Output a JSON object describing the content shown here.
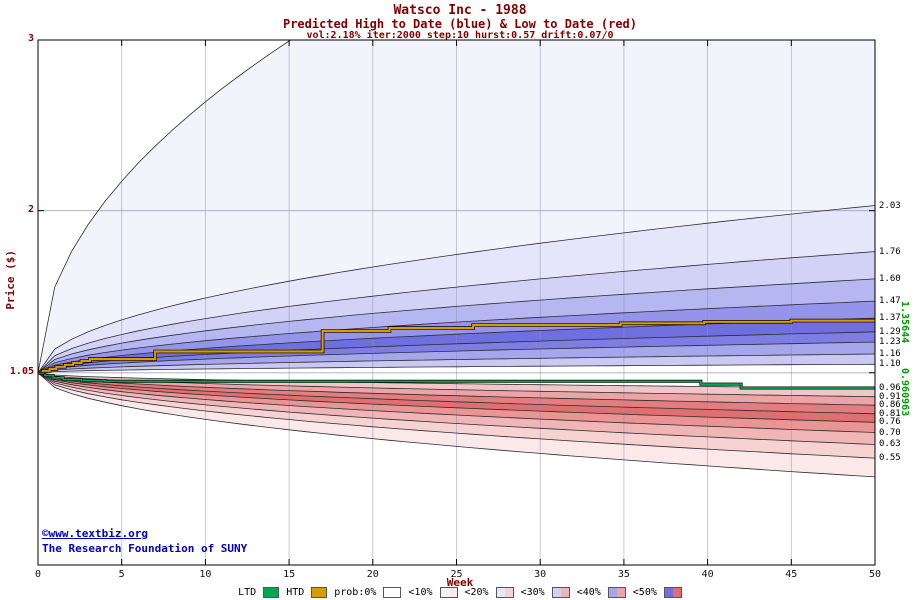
{
  "header": {
    "title": "Watsco Inc - 1988",
    "subtitle": "Predicted High to Date (blue) &  Low to Date (red)",
    "params": "vol:2.18% iter:2000 step:10 hurst:0.57 drift:0.07/0"
  },
  "footer": {
    "copyright": "©www.textbiz.org",
    "org": "The Research Foundation of SUNY"
  },
  "axes": {
    "y_label": "Price ($)",
    "x_label": "Week"
  },
  "legend": {
    "ltd_label": "LTD",
    "htd_label": "HTD",
    "prob_items": [
      {
        "label": "prob:0%",
        "blue": "#ffffff",
        "red": "#ffffff"
      },
      {
        "label": "<10%",
        "blue": "#f3f3fc",
        "red": "#fbe8e8"
      },
      {
        "label": "<20%",
        "blue": "#e6e6fa",
        "red": "#f6d2d2"
      },
      {
        "label": "<30%",
        "blue": "#d2d2f6",
        "red": "#f0b6b6"
      },
      {
        "label": "<40%",
        "blue": "#a6a6ec",
        "red": "#eca4a4"
      },
      {
        "label": "<50%",
        "blue": "#6f6fe0",
        "red": "#e07070"
      }
    ]
  },
  "chart_data": {
    "type": "area",
    "title": "Watsco Inc - 1988",
    "subtitle": "Predicted High to Date (blue) &  Low to Date (red)",
    "params": {
      "vol_pct": 2.18,
      "iter": 2000,
      "step": 10,
      "hurst": 0.57,
      "drift": "0.07/0"
    },
    "start_price": 1.05,
    "x_range": [
      0,
      50
    ],
    "x_ticks": [
      0,
      5,
      10,
      15,
      20,
      25,
      30,
      35,
      40,
      45,
      50
    ],
    "y_axis": {
      "min": 0,
      "max": 3,
      "ticks": [
        {
          "v": 3,
          "label": "3"
        },
        {
          "v": 2,
          "label": "2"
        },
        {
          "v": 1.05,
          "label": "1.05"
        }
      ]
    },
    "curve_exponent": 0.5,
    "upper_boundaries": [
      {
        "end": 1.1,
        "label": "1.10"
      },
      {
        "end": 1.16,
        "label": "1.16"
      },
      {
        "end": 1.23,
        "label": "1.23"
      },
      {
        "end": 1.29,
        "label": "1.29"
      },
      {
        "end": 1.37,
        "label": "1.37"
      },
      {
        "end": 1.47,
        "label": "1.47"
      },
      {
        "end": 1.6,
        "label": "1.60"
      },
      {
        "end": 1.76,
        "label": "1.76"
      },
      {
        "end": 2.03,
        "label": "2.03"
      },
      {
        "end": 4.6,
        "label": ""
      }
    ],
    "upper_band_colors": [
      "#c9c9f2",
      "#a6a6ec",
      "#7d7de4",
      "#6f6fe0",
      "#9494ea",
      "#b6b6f0",
      "#d2d2f6",
      "#e6e6fa",
      "#f3f3fc"
    ],
    "lower_boundaries": [
      {
        "end": 0.96,
        "label": "0.96"
      },
      {
        "end": 0.91,
        "label": "0.91"
      },
      {
        "end": 0.86,
        "label": "0.86"
      },
      {
        "end": 0.81,
        "label": "0.81"
      },
      {
        "end": 0.76,
        "label": "0.76"
      },
      {
        "end": 0.7,
        "label": "0.70"
      },
      {
        "end": 0.63,
        "label": "0.63"
      },
      {
        "end": 0.55,
        "label": "0.55"
      },
      {
        "end": 0.44,
        "label": ""
      }
    ],
    "lower_band_colors": [
      "#f2c6c6",
      "#eca4a4",
      "#e47d7d",
      "#e07070",
      "#ea9494",
      "#f0b6b6",
      "#f6d2d2",
      "#fbe8e8"
    ],
    "htd": {
      "name": "HTD",
      "color": "#dd9900",
      "final_value": 1.35644,
      "final_label": "1.35644",
      "steps": [
        [
          0,
          1.05
        ],
        [
          0.3,
          1.062
        ],
        [
          0.7,
          1.073
        ],
        [
          1.1,
          1.085
        ],
        [
          1.6,
          1.097
        ],
        [
          2.1,
          1.108
        ],
        [
          2.6,
          1.12
        ],
        [
          3.1,
          1.13
        ],
        [
          6.6,
          1.13
        ],
        [
          7.0,
          1.175
        ],
        [
          16.6,
          1.175
        ],
        [
          17.0,
          1.295
        ],
        [
          20.7,
          1.295
        ],
        [
          21.0,
          1.312
        ],
        [
          25.7,
          1.312
        ],
        [
          26.0,
          1.33
        ],
        [
          34.5,
          1.33
        ],
        [
          34.8,
          1.34
        ],
        [
          39.5,
          1.34
        ],
        [
          39.8,
          1.349
        ],
        [
          44.7,
          1.349
        ],
        [
          45.0,
          1.356
        ],
        [
          50,
          1.35644
        ]
      ]
    },
    "ltd": {
      "name": "LTD",
      "color": "#00a550",
      "final_value": 0.960963,
      "final_label": "0.960963",
      "steps": [
        [
          0,
          1.05
        ],
        [
          0.4,
          1.034
        ],
        [
          0.9,
          1.02
        ],
        [
          1.5,
          1.01
        ],
        [
          2.6,
          1.004
        ],
        [
          4.0,
          1.0
        ],
        [
          39.2,
          1.0
        ],
        [
          39.6,
          0.984
        ],
        [
          41.6,
          0.984
        ],
        [
          42.0,
          0.961
        ],
        [
          50,
          0.960963
        ]
      ]
    }
  }
}
